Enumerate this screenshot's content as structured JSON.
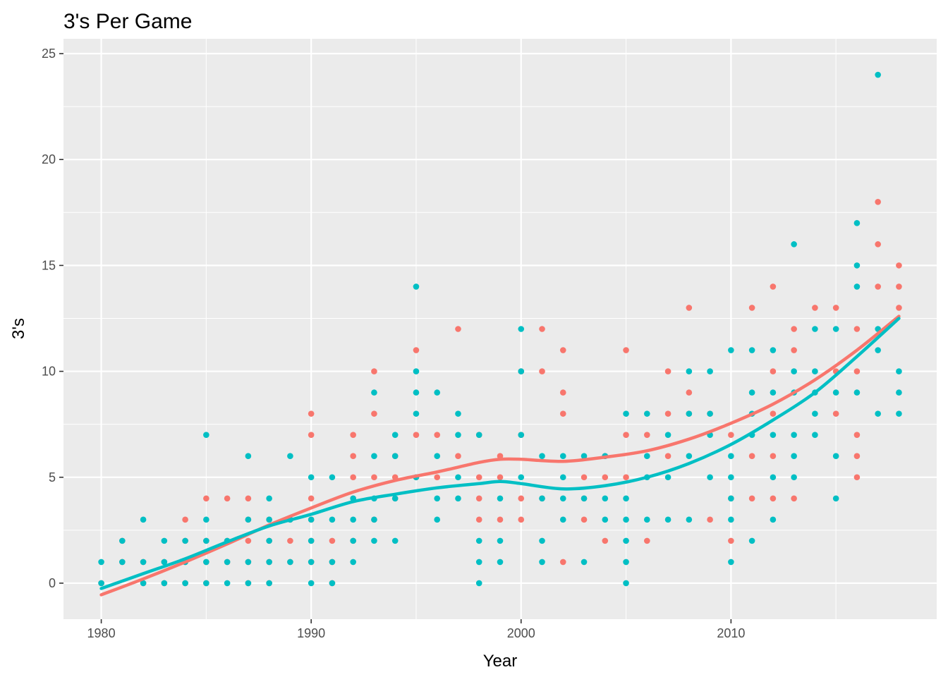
{
  "chart_data": {
    "type": "scatter",
    "title": "3's Per Game",
    "xlabel": "Year",
    "ylabel": "3's",
    "xlim": [
      1978.2,
      2019.8
    ],
    "ylim": [
      -1.7,
      25.7
    ],
    "x_ticks": [
      1980,
      1990,
      2000,
      2010
    ],
    "y_ticks": [
      0,
      5,
      10,
      15,
      20,
      25
    ],
    "x_tick_labels": [
      "1980",
      "1990",
      "2000",
      "2010"
    ],
    "y_tick_labels": [
      "0",
      "5",
      "10",
      "15",
      "20",
      "25"
    ],
    "grid": true,
    "legend": "none",
    "series": [
      {
        "name": "red",
        "color": "#F8766D",
        "points": [
          [
            1980,
            0
          ],
          [
            1981,
            1
          ],
          [
            1981,
            2
          ],
          [
            1982,
            0
          ],
          [
            1982,
            1
          ],
          [
            1983,
            0
          ],
          [
            1983,
            1
          ],
          [
            1984,
            0
          ],
          [
            1984,
            1
          ],
          [
            1984,
            2
          ],
          [
            1984,
            3
          ],
          [
            1985,
            0
          ],
          [
            1985,
            1
          ],
          [
            1985,
            2
          ],
          [
            1985,
            4
          ],
          [
            1986,
            1
          ],
          [
            1986,
            2
          ],
          [
            1986,
            4
          ],
          [
            1987,
            0
          ],
          [
            1987,
            1
          ],
          [
            1987,
            2
          ],
          [
            1987,
            3
          ],
          [
            1987,
            4
          ],
          [
            1988,
            0
          ],
          [
            1988,
            1
          ],
          [
            1988,
            2
          ],
          [
            1988,
            3
          ],
          [
            1989,
            1
          ],
          [
            1989,
            2
          ],
          [
            1989,
            3
          ],
          [
            1990,
            1
          ],
          [
            1990,
            2
          ],
          [
            1990,
            3
          ],
          [
            1990,
            4
          ],
          [
            1990,
            7
          ],
          [
            1990,
            8
          ],
          [
            1991,
            0
          ],
          [
            1991,
            1
          ],
          [
            1991,
            2
          ],
          [
            1992,
            2
          ],
          [
            1992,
            4
          ],
          [
            1992,
            5
          ],
          [
            1992,
            6
          ],
          [
            1992,
            7
          ],
          [
            1993,
            3
          ],
          [
            1993,
            5
          ],
          [
            1993,
            8
          ],
          [
            1993,
            10
          ],
          [
            1994,
            4
          ],
          [
            1994,
            5
          ],
          [
            1994,
            6
          ],
          [
            1995,
            5
          ],
          [
            1995,
            7
          ],
          [
            1995,
            11
          ],
          [
            1996,
            5
          ],
          [
            1996,
            7
          ],
          [
            1997,
            6
          ],
          [
            1997,
            12
          ],
          [
            1998,
            3
          ],
          [
            1998,
            4
          ],
          [
            1998,
            5
          ],
          [
            1998,
            7
          ],
          [
            1999,
            3
          ],
          [
            1999,
            5
          ],
          [
            1999,
            6
          ],
          [
            2000,
            3
          ],
          [
            2000,
            4
          ],
          [
            2000,
            7
          ],
          [
            2000,
            10
          ],
          [
            2001,
            4
          ],
          [
            2001,
            10
          ],
          [
            2001,
            12
          ],
          [
            2002,
            1
          ],
          [
            2002,
            8
          ],
          [
            2002,
            9
          ],
          [
            2002,
            11
          ],
          [
            2003,
            3
          ],
          [
            2003,
            4
          ],
          [
            2003,
            5
          ],
          [
            2004,
            2
          ],
          [
            2004,
            5
          ],
          [
            2004,
            6
          ],
          [
            2005,
            5
          ],
          [
            2005,
            7
          ],
          [
            2005,
            11
          ],
          [
            2006,
            2
          ],
          [
            2006,
            7
          ],
          [
            2007,
            6
          ],
          [
            2007,
            8
          ],
          [
            2007,
            10
          ],
          [
            2008,
            8
          ],
          [
            2008,
            9
          ],
          [
            2008,
            13
          ],
          [
            2009,
            3
          ],
          [
            2009,
            8
          ],
          [
            2010,
            2
          ],
          [
            2010,
            4
          ],
          [
            2010,
            7
          ],
          [
            2011,
            4
          ],
          [
            2011,
            6
          ],
          [
            2011,
            13
          ],
          [
            2012,
            4
          ],
          [
            2012,
            6
          ],
          [
            2012,
            8
          ],
          [
            2012,
            10
          ],
          [
            2012,
            14
          ],
          [
            2013,
            4
          ],
          [
            2013,
            11
          ],
          [
            2013,
            12
          ],
          [
            2014,
            13
          ],
          [
            2015,
            8
          ],
          [
            2015,
            10
          ],
          [
            2015,
            13
          ],
          [
            2016,
            5
          ],
          [
            2016,
            6
          ],
          [
            2016,
            7
          ],
          [
            2016,
            10
          ],
          [
            2016,
            12
          ],
          [
            2017,
            14
          ],
          [
            2017,
            16
          ],
          [
            2017,
            18
          ],
          [
            2018,
            13
          ],
          [
            2018,
            14
          ],
          [
            2018,
            15
          ]
        ],
        "trend": [
          [
            1980,
            -0.55
          ],
          [
            1982,
            0.2
          ],
          [
            1984,
            1.0
          ],
          [
            1986,
            1.85
          ],
          [
            1988,
            2.75
          ],
          [
            1990,
            3.55
          ],
          [
            1992,
            4.3
          ],
          [
            1994,
            4.85
          ],
          [
            1996,
            5.25
          ],
          [
            1998,
            5.7
          ],
          [
            1999,
            5.85
          ],
          [
            2000,
            5.85
          ],
          [
            2002,
            5.75
          ],
          [
            2004,
            5.95
          ],
          [
            2006,
            6.25
          ],
          [
            2008,
            6.8
          ],
          [
            2010,
            7.55
          ],
          [
            2012,
            8.45
          ],
          [
            2014,
            9.6
          ],
          [
            2016,
            11.0
          ],
          [
            2018,
            12.6
          ]
        ]
      },
      {
        "name": "teal",
        "color": "#00BFC4",
        "points": [
          [
            1980,
            0
          ],
          [
            1980,
            1
          ],
          [
            1981,
            1
          ],
          [
            1981,
            2
          ],
          [
            1982,
            0
          ],
          [
            1982,
            1
          ],
          [
            1982,
            3
          ],
          [
            1983,
            0
          ],
          [
            1983,
            1
          ],
          [
            1983,
            2
          ],
          [
            1984,
            0
          ],
          [
            1984,
            1
          ],
          [
            1984,
            2
          ],
          [
            1985,
            0
          ],
          [
            1985,
            1
          ],
          [
            1985,
            2
          ],
          [
            1985,
            3
          ],
          [
            1985,
            7
          ],
          [
            1986,
            0
          ],
          [
            1986,
            1
          ],
          [
            1986,
            2
          ],
          [
            1987,
            0
          ],
          [
            1987,
            1
          ],
          [
            1987,
            3
          ],
          [
            1987,
            6
          ],
          [
            1988,
            0
          ],
          [
            1988,
            1
          ],
          [
            1988,
            2
          ],
          [
            1988,
            3
          ],
          [
            1988,
            4
          ],
          [
            1989,
            1
          ],
          [
            1989,
            3
          ],
          [
            1989,
            6
          ],
          [
            1990,
            0
          ],
          [
            1990,
            1
          ],
          [
            1990,
            2
          ],
          [
            1990,
            3
          ],
          [
            1990,
            5
          ],
          [
            1991,
            0
          ],
          [
            1991,
            1
          ],
          [
            1991,
            3
          ],
          [
            1991,
            5
          ],
          [
            1992,
            1
          ],
          [
            1992,
            2
          ],
          [
            1992,
            3
          ],
          [
            1992,
            4
          ],
          [
            1993,
            2
          ],
          [
            1993,
            3
          ],
          [
            1993,
            4
          ],
          [
            1993,
            6
          ],
          [
            1993,
            9
          ],
          [
            1994,
            2
          ],
          [
            1994,
            4
          ],
          [
            1994,
            6
          ],
          [
            1994,
            7
          ],
          [
            1995,
            5
          ],
          [
            1995,
            8
          ],
          [
            1995,
            9
          ],
          [
            1995,
            10
          ],
          [
            1995,
            14
          ],
          [
            1996,
            3
          ],
          [
            1996,
            4
          ],
          [
            1996,
            6
          ],
          [
            1996,
            9
          ],
          [
            1997,
            4
          ],
          [
            1997,
            5
          ],
          [
            1997,
            7
          ],
          [
            1997,
            8
          ],
          [
            1998,
            0
          ],
          [
            1998,
            1
          ],
          [
            1998,
            2
          ],
          [
            1998,
            7
          ],
          [
            1999,
            1
          ],
          [
            1999,
            2
          ],
          [
            1999,
            4
          ],
          [
            2000,
            5
          ],
          [
            2000,
            7
          ],
          [
            2000,
            10
          ],
          [
            2000,
            12
          ],
          [
            2001,
            1
          ],
          [
            2001,
            2
          ],
          [
            2001,
            4
          ],
          [
            2001,
            6
          ],
          [
            2002,
            3
          ],
          [
            2002,
            4
          ],
          [
            2002,
            5
          ],
          [
            2002,
            6
          ],
          [
            2003,
            1
          ],
          [
            2003,
            4
          ],
          [
            2003,
            6
          ],
          [
            2004,
            3
          ],
          [
            2004,
            4
          ],
          [
            2004,
            6
          ],
          [
            2005,
            0
          ],
          [
            2005,
            1
          ],
          [
            2005,
            2
          ],
          [
            2005,
            3
          ],
          [
            2005,
            4
          ],
          [
            2005,
            8
          ],
          [
            2006,
            3
          ],
          [
            2006,
            5
          ],
          [
            2006,
            6
          ],
          [
            2006,
            8
          ],
          [
            2007,
            3
          ],
          [
            2007,
            5
          ],
          [
            2007,
            7
          ],
          [
            2008,
            3
          ],
          [
            2008,
            6
          ],
          [
            2008,
            8
          ],
          [
            2008,
            10
          ],
          [
            2009,
            5
          ],
          [
            2009,
            7
          ],
          [
            2009,
            8
          ],
          [
            2009,
            10
          ],
          [
            2010,
            1
          ],
          [
            2010,
            3
          ],
          [
            2010,
            4
          ],
          [
            2010,
            5
          ],
          [
            2010,
            6
          ],
          [
            2010,
            11
          ],
          [
            2011,
            2
          ],
          [
            2011,
            7
          ],
          [
            2011,
            8
          ],
          [
            2011,
            9
          ],
          [
            2011,
            11
          ],
          [
            2012,
            3
          ],
          [
            2012,
            5
          ],
          [
            2012,
            7
          ],
          [
            2012,
            9
          ],
          [
            2012,
            11
          ],
          [
            2013,
            5
          ],
          [
            2013,
            6
          ],
          [
            2013,
            7
          ],
          [
            2013,
            9
          ],
          [
            2013,
            10
          ],
          [
            2013,
            16
          ],
          [
            2014,
            7
          ],
          [
            2014,
            8
          ],
          [
            2014,
            9
          ],
          [
            2014,
            10
          ],
          [
            2014,
            12
          ],
          [
            2015,
            4
          ],
          [
            2015,
            6
          ],
          [
            2015,
            9
          ],
          [
            2015,
            12
          ],
          [
            2016,
            9
          ],
          [
            2016,
            14
          ],
          [
            2016,
            15
          ],
          [
            2016,
            17
          ],
          [
            2017,
            8
          ],
          [
            2017,
            11
          ],
          [
            2017,
            12
          ],
          [
            2017,
            24
          ],
          [
            2018,
            8
          ],
          [
            2018,
            9
          ],
          [
            2018,
            10
          ]
        ],
        "trend": [
          [
            1980,
            -0.25
          ],
          [
            1982,
            0.45
          ],
          [
            1984,
            1.15
          ],
          [
            1986,
            1.95
          ],
          [
            1988,
            2.7
          ],
          [
            1990,
            3.25
          ],
          [
            1992,
            3.85
          ],
          [
            1994,
            4.2
          ],
          [
            1996,
            4.5
          ],
          [
            1998,
            4.7
          ],
          [
            1999,
            4.8
          ],
          [
            2000,
            4.7
          ],
          [
            2002,
            4.45
          ],
          [
            2004,
            4.6
          ],
          [
            2006,
            5.0
          ],
          [
            2008,
            5.65
          ],
          [
            2010,
            6.55
          ],
          [
            2012,
            7.7
          ],
          [
            2014,
            9.0
          ],
          [
            2016,
            10.7
          ],
          [
            2018,
            12.5
          ]
        ]
      }
    ]
  }
}
